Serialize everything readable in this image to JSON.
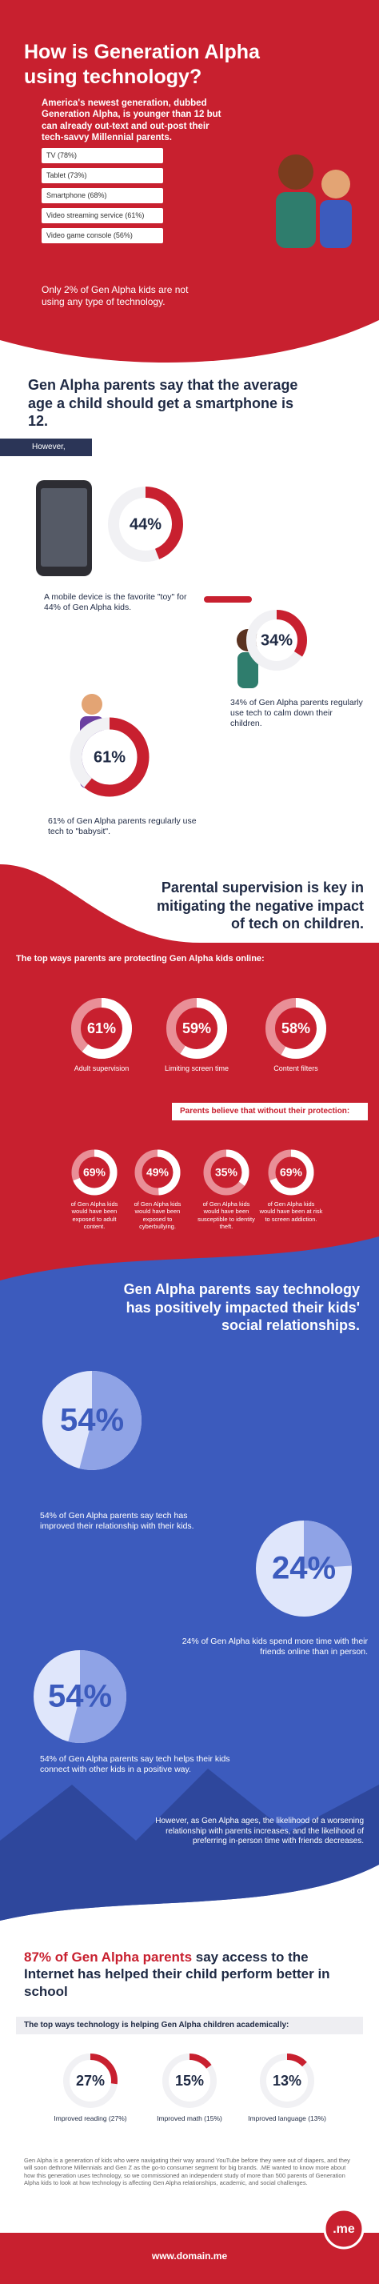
{
  "header": {
    "title": "How is Generation Alpha using technology?",
    "intro": "America's newest generation, dubbed Generation Alpha, is younger than 12 but can already out-text and out-post their tech-savvy Millennial parents.",
    "devices": [
      "TV (78%)",
      "Tablet (73%)",
      "Smartphone (68%)",
      "Video streaming service (61%)",
      "Video game console (56%)"
    ],
    "note": "Only 2% of Gen Alpha kids are not using any type of technology."
  },
  "smartphone": {
    "heading": "Gen Alpha parents say that the average age a child should get a smartphone is 12.",
    "tag": "However,",
    "stats": [
      {
        "value": 44,
        "label": "44%",
        "text": "A mobile device is the favorite \"toy\" for 44% of Gen Alpha kids."
      },
      {
        "value": 34,
        "label": "34%",
        "text": "34% of Gen Alpha parents regularly use tech to calm down their children."
      },
      {
        "value": 61,
        "label": "61%",
        "text": "61% of Gen Alpha parents regularly use tech to \"babysit\"."
      }
    ]
  },
  "supervision": {
    "heading": "Parental supervision is key in mitigating the negative impact of tech on children.",
    "protect_title": "The top ways parents are protecting Gen Alpha kids online:",
    "ways": [
      {
        "value": 61,
        "label": "61%",
        "text": "Adult supervision"
      },
      {
        "value": 59,
        "label": "59%",
        "text": "Limiting screen time"
      },
      {
        "value": 58,
        "label": "58%",
        "text": "Content filters"
      }
    ],
    "without_title": "Parents believe that without their protection:",
    "risks": [
      {
        "value": 69,
        "label": "69%",
        "text": "of Gen Alpha kids would have been exposed to adult content."
      },
      {
        "value": 49,
        "label": "49%",
        "text": "of Gen Alpha kids would have been exposed to cyberbullying."
      },
      {
        "value": 35,
        "label": "35%",
        "text": "of Gen Alpha kids would have been susceptible to identity theft."
      },
      {
        "value": 69,
        "label": "69%",
        "text": "of Gen Alpha kids would have been at risk to screen addiction."
      }
    ]
  },
  "social": {
    "heading": "Gen Alpha parents say technology has positively impacted their kids' social relationships.",
    "stats": [
      {
        "value": 54,
        "label": "54%",
        "text": "54% of Gen Alpha parents say tech has improved their relationship with their kids."
      },
      {
        "value": 24,
        "label": "24%",
        "text": "24% of Gen Alpha kids spend more time with their friends online than in person."
      },
      {
        "value": 54,
        "label": "54%",
        "text": "54% of Gen Alpha parents say tech helps their kids connect with other kids in a positive way."
      }
    ],
    "note": "However, as Gen Alpha ages, the likelihood of a worsening relationship with parents increases, and the likelihood of preferring in-person time with friends decreases."
  },
  "school": {
    "heading_highlight": "87% of Gen Alpha parents",
    "heading": "say access to the Internet has helped their child perform better in school",
    "ways_title": "The top ways technology is helping Gen Alpha children academically:",
    "ways": [
      {
        "value": 27,
        "label": "27%",
        "text": "Improved reading (27%)"
      },
      {
        "value": 15,
        "label": "15%",
        "text": "Improved math (15%)"
      },
      {
        "value": 13,
        "label": "13%",
        "text": "Improved language (13%)"
      }
    ],
    "footnote": "Gen Alpha is a generation of kids who were navigating their way around YouTube before they were out of diapers, and they will soon dethrone Millennials and Gen Z as the go-to consumer segment for big brands. .ME wanted to know more about how this generation uses technology, so we commissioned an independent study of more than 500 parents of Generation Alpha kids to look at how technology is affecting Gen Alpha relationships, academic, and social challenges.",
    "url": "www.domain.me",
    "logo": ".me"
  }
}
